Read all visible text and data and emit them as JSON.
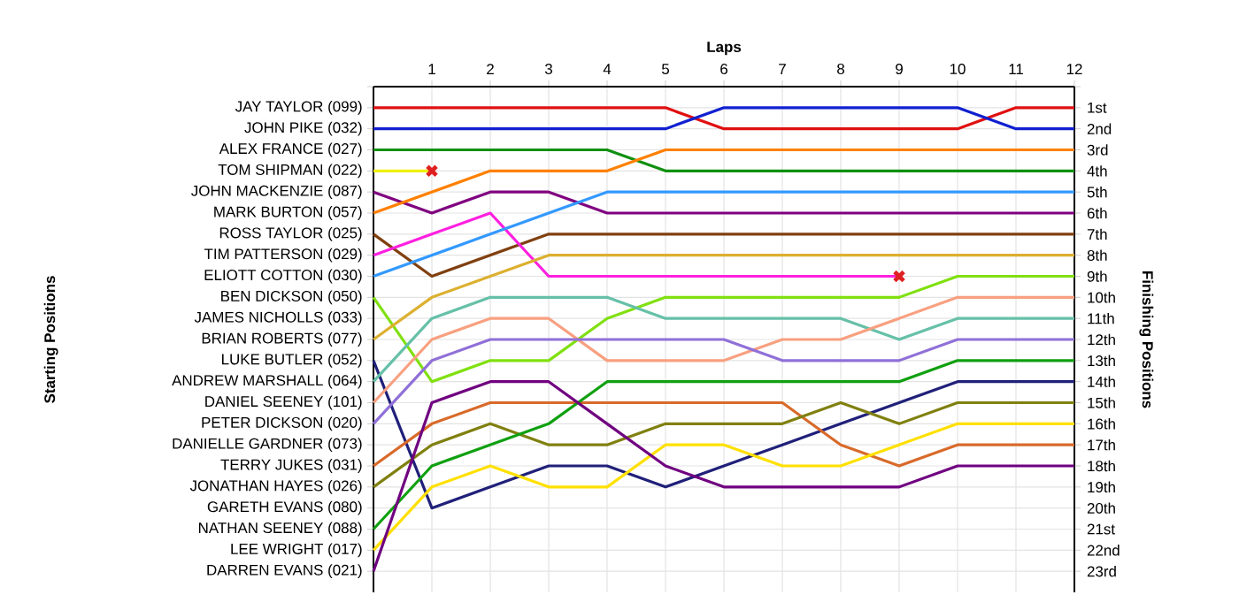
{
  "chart_data": {
    "type": "line",
    "xlabel": "Laps",
    "y2label": "Finishing Positions",
    "x": [
      0,
      1,
      2,
      3,
      4,
      5,
      6,
      7,
      8,
      9,
      10,
      11,
      12
    ],
    "xlim": [
      0,
      12
    ],
    "xticks": [
      1,
      2,
      3,
      4,
      5,
      6,
      7,
      8,
      9,
      10,
      11,
      12
    ],
    "y2lim": [
      24,
      0
    ],
    "y2ticks": [
      {
        "value": 0,
        "label": null
      },
      {
        "value": 1,
        "label": "1st"
      },
      {
        "value": 2,
        "label": "2nd"
      },
      {
        "value": 3,
        "label": "3rd"
      },
      {
        "value": 4,
        "label": "4th"
      },
      {
        "value": 5,
        "label": "5th"
      },
      {
        "value": 6,
        "label": "6th"
      },
      {
        "value": 7,
        "label": "7th"
      },
      {
        "value": 8,
        "label": "8th"
      },
      {
        "value": 9,
        "label": "9th"
      },
      {
        "value": 10,
        "label": "10th"
      },
      {
        "value": 11,
        "label": "11th"
      },
      {
        "value": 12,
        "label": "12th"
      },
      {
        "value": 13,
        "label": "13th"
      },
      {
        "value": 14,
        "label": "14th"
      },
      {
        "value": 15,
        "label": "15th"
      },
      {
        "value": 16,
        "label": "16th"
      },
      {
        "value": 17,
        "label": "17th"
      },
      {
        "value": 18,
        "label": "18th"
      },
      {
        "value": 19,
        "label": "19th"
      },
      {
        "value": 20,
        "label": "20th"
      },
      {
        "value": 21,
        "label": "21st"
      },
      {
        "value": 22,
        "label": "22nd"
      },
      {
        "value": 23,
        "label": "23rd"
      }
    ],
    "grid": true,
    "marker": "none",
    "line_style": "solid",
    "annotations": [
      "Starting Positions",
      "JAMES NICHOLLS (033)",
      "DANIELLE GARDNER (073)",
      "GARETH EVANS (080)"
    ],
    "series": [
      {
        "name": "JAY TAYLOR (099)",
        "axis": "y2",
        "color": "#e01010",
        "values": [
          1,
          1,
          1,
          1,
          1,
          1,
          2,
          2,
          2,
          2,
          2,
          1,
          1
        ]
      },
      {
        "name": "JOHN PIKE (032)",
        "axis": "y2",
        "color": "#1020d0",
        "values": [
          2,
          2,
          2,
          2,
          2,
          2,
          1,
          1,
          1,
          1,
          1,
          2,
          2
        ]
      },
      {
        "name": "ALEX FRANCE (027)",
        "axis": "y2",
        "color": "#109010",
        "values": [
          3,
          3,
          3,
          3,
          3,
          4,
          4,
          4,
          4,
          4,
          4,
          4,
          4
        ]
      },
      {
        "name": "TOM SHIPMAN (022)",
        "axis": "y2",
        "color": "#f0f010",
        "values": [
          4,
          4,
          null,
          null,
          null,
          null,
          null,
          null,
          null,
          null,
          null,
          null,
          null
        ]
      },
      {
        "name": "JOHN MACKENZIE (087)",
        "axis": "y2",
        "color": "#800080",
        "values": [
          5,
          6,
          5,
          5,
          6,
          6,
          6,
          6,
          6,
          6,
          6,
          6,
          6
        ]
      },
      {
        "name": "MARK BURTON (057)",
        "axis": "y2",
        "color": "#ff8000",
        "values": [
          6,
          5,
          4,
          4,
          4,
          3,
          3,
          3,
          3,
          3,
          3,
          3,
          3
        ]
      },
      {
        "name": "ROSS TAYLOR (025)",
        "axis": "y2",
        "color": "#804010",
        "values": [
          7,
          9,
          8,
          7,
          7,
          7,
          7,
          7,
          7,
          7,
          7,
          7,
          7
        ]
      },
      {
        "name": "TIM PATTERSON (029)",
        "axis": "y2",
        "color": "#ff20e0",
        "values": [
          8,
          7,
          6,
          9,
          9,
          9,
          9,
          9,
          9,
          9,
          null,
          null,
          null
        ]
      },
      {
        "name": "ELIOTT COTTON (030)",
        "axis": "y2",
        "color": "#3399ff",
        "values": [
          9,
          8,
          7,
          6,
          5,
          5,
          5,
          5,
          5,
          5,
          5,
          5,
          5
        ]
      },
      {
        "name": "BEN DICKSON (050)",
        "axis": "y2",
        "color": "#80e010",
        "values": [
          10,
          14,
          13,
          13,
          11,
          10,
          10,
          10,
          10,
          10,
          9,
          9,
          9
        ]
      },
      {
        "name": "BRIAN ROBERTS (077)",
        "axis": "y2",
        "color": "#dcb030",
        "values": [
          12,
          10,
          9,
          8,
          8,
          8,
          8,
          8,
          8,
          8,
          8,
          8,
          8
        ]
      },
      {
        "name": "LUKE BUTLER (052)",
        "axis": "y2",
        "color": "#20207a",
        "values": [
          13,
          20,
          19,
          18,
          18,
          19,
          18,
          17,
          16,
          15,
          14,
          14,
          14
        ]
      },
      {
        "name": "ANDREW MARSHALL (064)",
        "axis": "y2",
        "color": "#66c0a8",
        "values": [
          14,
          11,
          10,
          10,
          10,
          11,
          11,
          11,
          11,
          12,
          11,
          11,
          11
        ]
      },
      {
        "name": "DANIEL SEENEY (101)",
        "axis": "y2",
        "color": "#f8a080",
        "values": [
          15,
          12,
          11,
          11,
          13,
          13,
          13,
          12,
          12,
          11,
          10,
          10,
          10
        ]
      },
      {
        "name": "PETER DICKSON (020)",
        "axis": "y2",
        "color": "#9070d8",
        "values": [
          16,
          13,
          12,
          12,
          12,
          12,
          12,
          13,
          13,
          13,
          12,
          12,
          12
        ]
      },
      {
        "name": "TERRY JUKES (031)",
        "axis": "y2",
        "color": "#d86a2a",
        "values": [
          18,
          16,
          15,
          15,
          15,
          15,
          15,
          15,
          17,
          18,
          17,
          17,
          17
        ]
      },
      {
        "name": "JONATHAN HAYES (026)",
        "axis": "y2",
        "color": "#808010",
        "values": [
          19,
          17,
          16,
          17,
          17,
          16,
          16,
          16,
          15,
          16,
          15,
          15,
          15
        ]
      },
      {
        "name": "NATHAN SEENEY (088)",
        "axis": "y2",
        "color": "#10a010",
        "values": [
          21,
          18,
          17,
          16,
          14,
          14,
          14,
          14,
          14,
          14,
          13,
          13,
          13
        ]
      },
      {
        "name": "LEE WRIGHT (017)",
        "axis": "y2",
        "color": "#ffe000",
        "values": [
          22,
          19,
          18,
          19,
          19,
          17,
          17,
          18,
          18,
          17,
          16,
          16,
          16
        ]
      },
      {
        "name": "DARREN EVANS (021)",
        "axis": "y2",
        "color": "#700080",
        "values": [
          23,
          15,
          14,
          14,
          16,
          18,
          19,
          19,
          19,
          19,
          18,
          18,
          18
        ]
      },
      {
        "type": "scatter",
        "axis": "y2",
        "marker": "cross",
        "color": "#e02020",
        "x": [
          1,
          9
        ],
        "values": [
          4,
          9
        ]
      }
    ]
  }
}
